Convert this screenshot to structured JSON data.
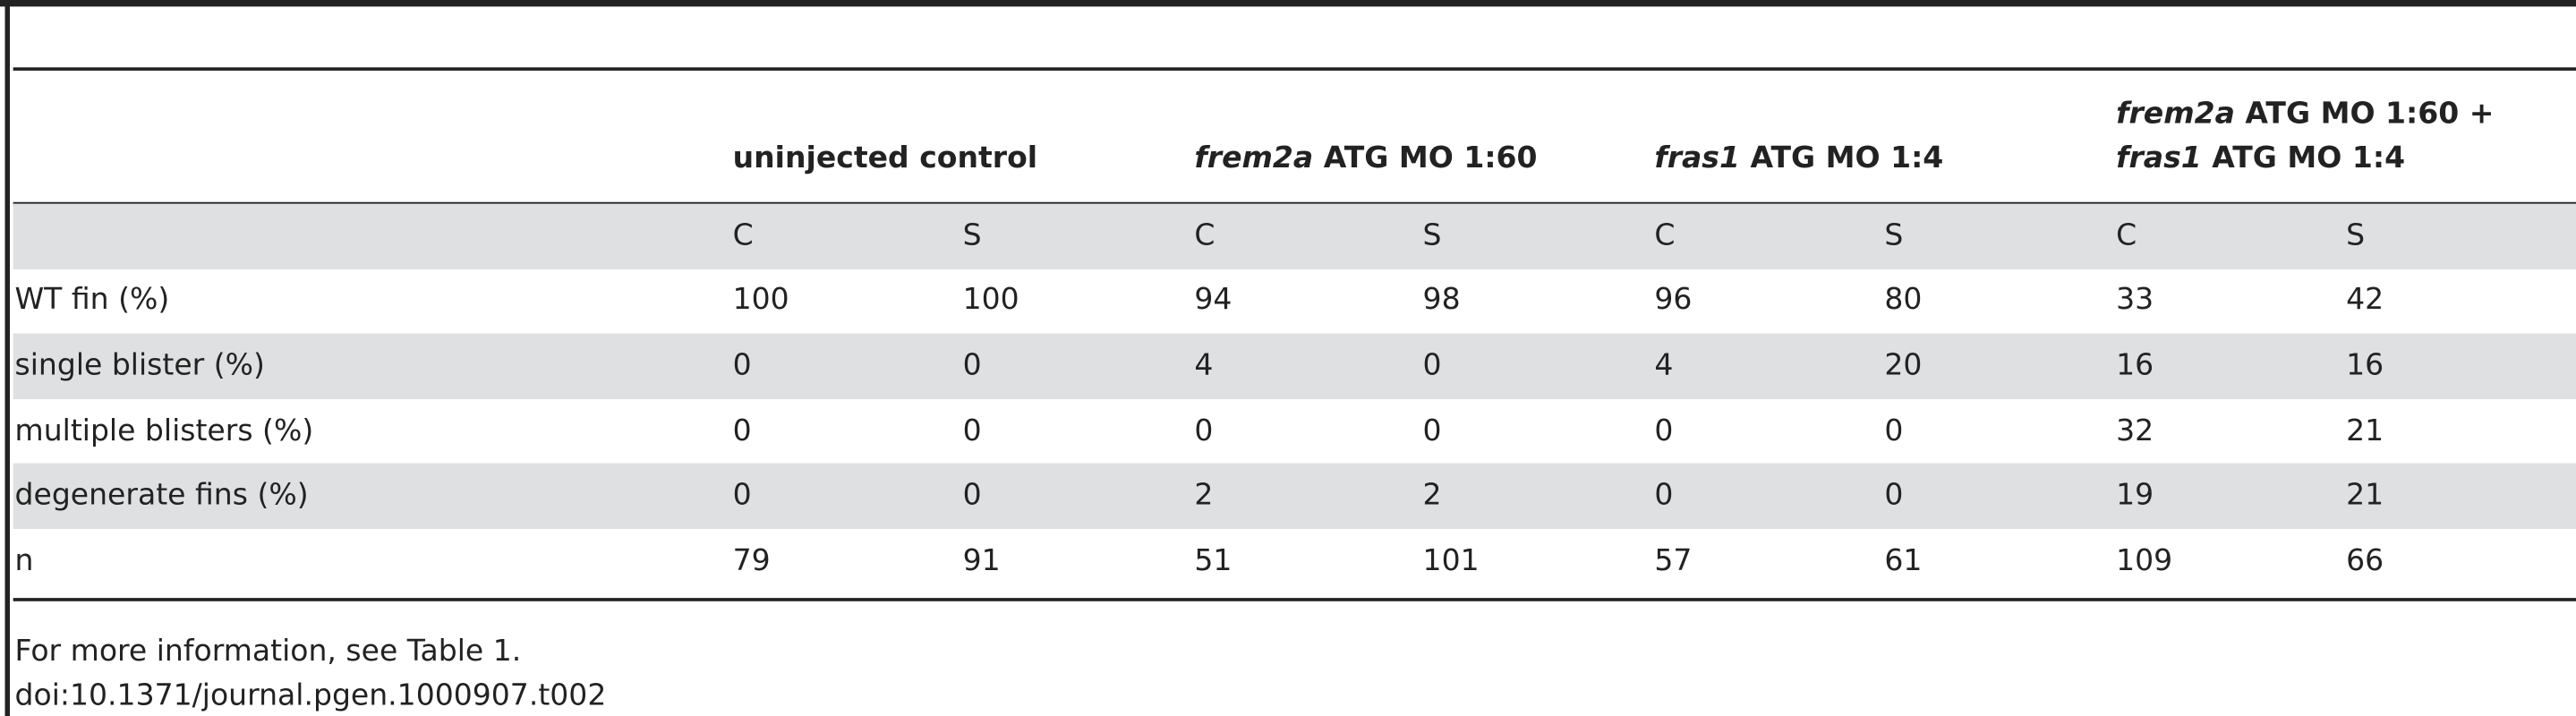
{
  "table": {
    "groups": [
      {
        "lines": [
          [
            {
              "text": "uninjected control"
            }
          ]
        ]
      },
      {
        "lines": [
          [
            {
              "text": "frem2a",
              "italic": true
            },
            {
              "text": " ATG MO 1:60"
            }
          ]
        ]
      },
      {
        "lines": [
          [
            {
              "text": "fras1",
              "italic": true
            },
            {
              "text": " ATG MO 1:4"
            }
          ]
        ]
      },
      {
        "lines": [
          [
            {
              "text": "frem2a",
              "italic": true
            },
            {
              "text": " ATG MO 1:60 +"
            }
          ],
          [
            {
              "text": "fras1",
              "italic": true
            },
            {
              "text": " ATG MO 1:4"
            }
          ]
        ]
      }
    ],
    "subheader": [
      "C",
      "S",
      "C",
      "S",
      "C",
      "S",
      "C",
      "S"
    ],
    "rows": [
      {
        "label": "WT fin (%)",
        "values": [
          100,
          100,
          94,
          98,
          96,
          80,
          33,
          42
        ]
      },
      {
        "label": "single blister (%)",
        "values": [
          0,
          0,
          4,
          0,
          4,
          20,
          16,
          16
        ]
      },
      {
        "label": "multiple blisters (%)",
        "values": [
          0,
          0,
          0,
          0,
          0,
          0,
          32,
          21
        ]
      },
      {
        "label": "degenerate fins (%)",
        "values": [
          0,
          0,
          2,
          2,
          0,
          0,
          19,
          21
        ]
      },
      {
        "label": "n",
        "values": [
          79,
          91,
          51,
          101,
          57,
          61,
          109,
          66
        ]
      }
    ]
  },
  "footer": {
    "note": "For more information, see Table 1.",
    "doi": "doi:10.1371/journal.pgen.1000907.t002"
  }
}
